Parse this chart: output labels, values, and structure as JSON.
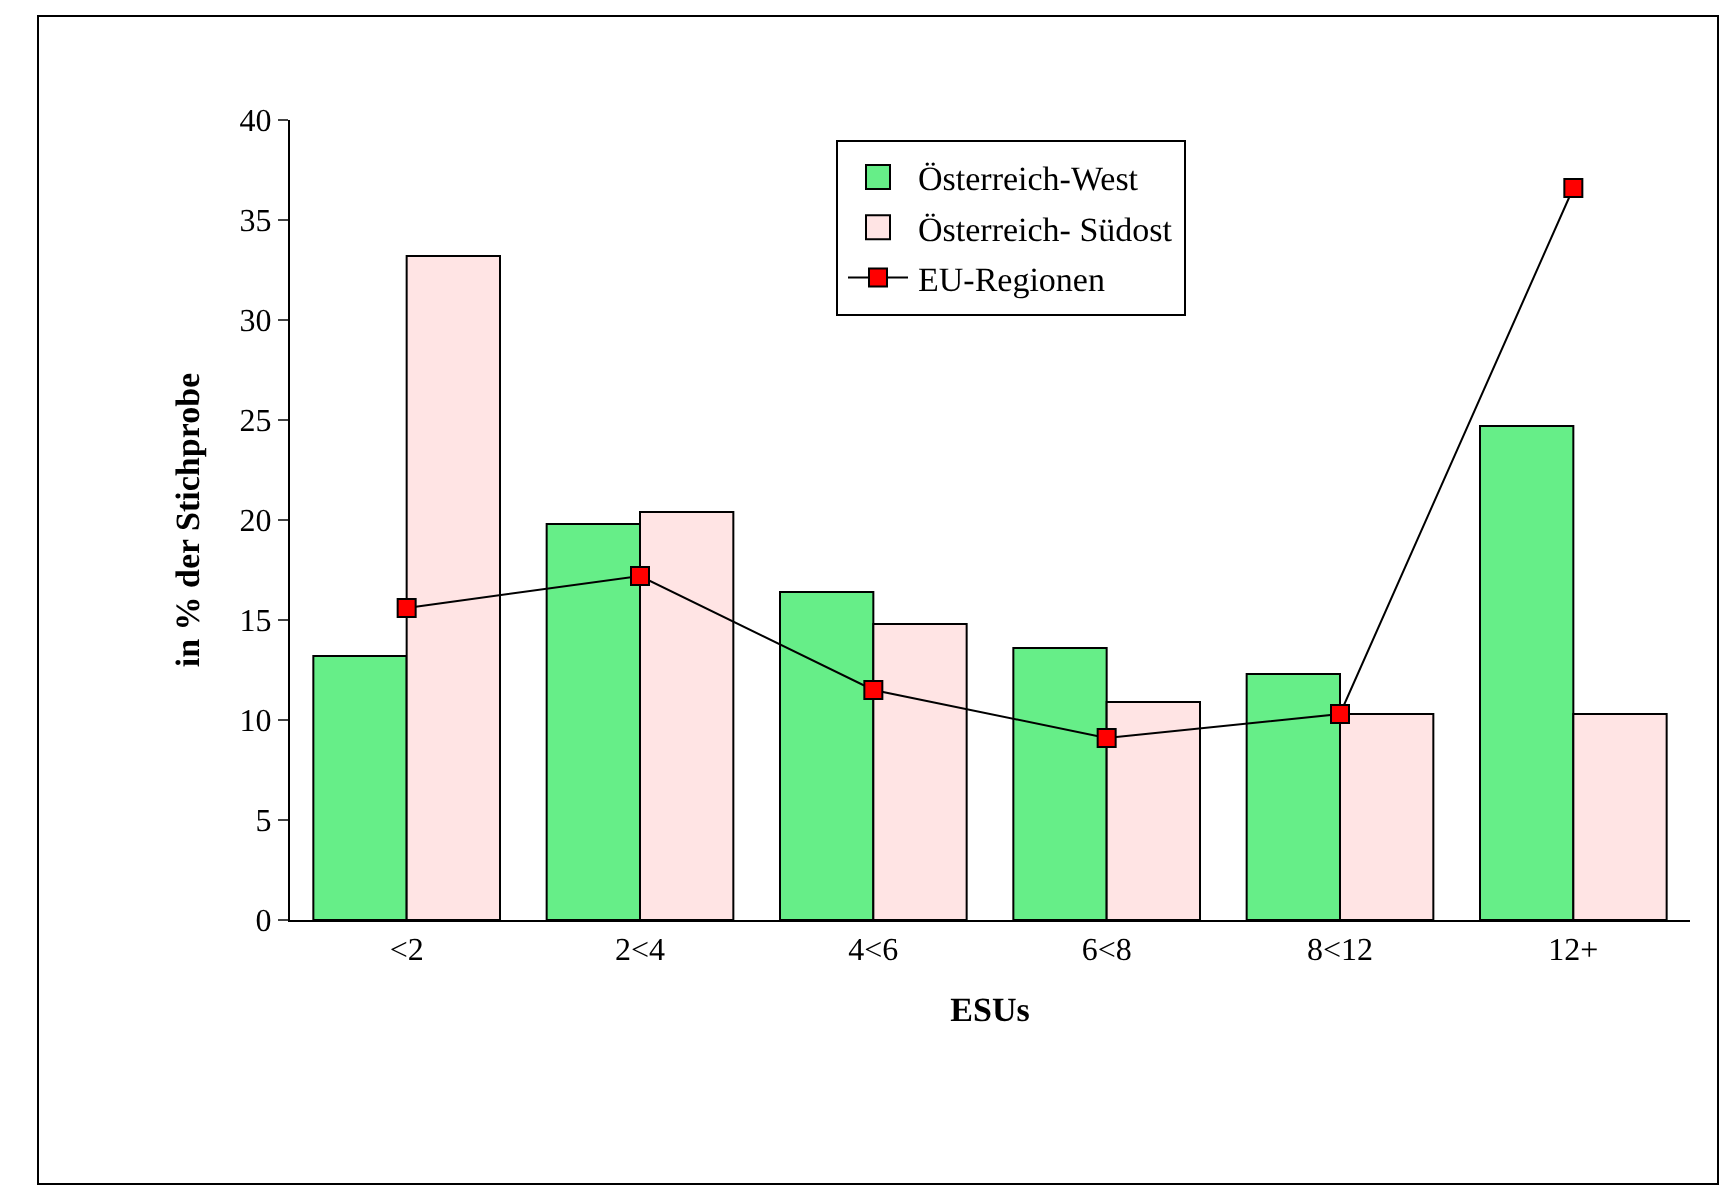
{
  "chart_data": {
    "type": "bar",
    "xlabel": "ESUs",
    "ylabel": "in % der Stichprobe",
    "categories": [
      "<2",
      "2<4",
      "4<6",
      "6<8",
      "8<12",
      "12+"
    ],
    "series": [
      {
        "name": "Österreich-West",
        "color": "#66ee88",
        "values": [
          13.2,
          19.8,
          16.4,
          13.6,
          12.3,
          24.7
        ]
      },
      {
        "name": "Österreich- Südost",
        "color": "#ffe4e4",
        "values": [
          33.2,
          20.4,
          14.8,
          10.9,
          10.3,
          10.3
        ]
      },
      {
        "name": "EU-Regionen",
        "type": "line",
        "color": "#ff0000",
        "marker": "square",
        "values": [
          15.6,
          17.2,
          11.5,
          9.1,
          10.3,
          36.6
        ]
      }
    ],
    "ylim": [
      0,
      40
    ],
    "yticks": [
      0,
      5,
      10,
      15,
      20,
      25,
      30,
      35,
      40
    ],
    "legend": "top right"
  }
}
